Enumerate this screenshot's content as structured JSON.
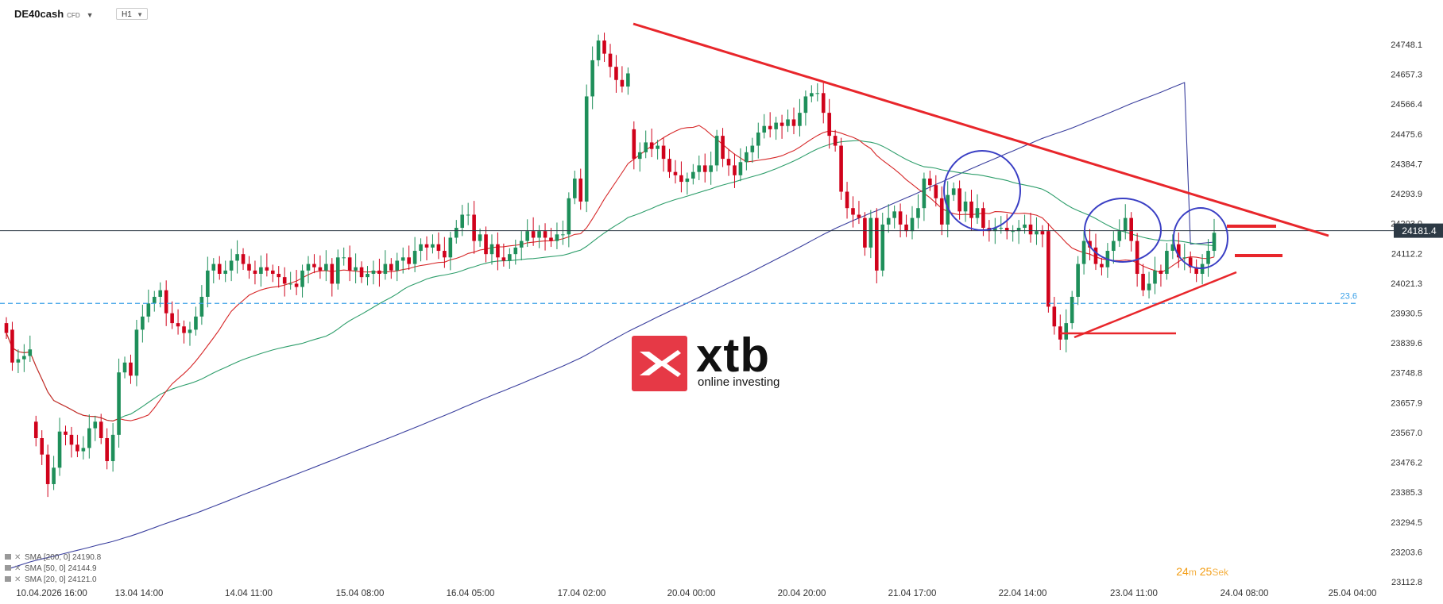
{
  "toolbar": {
    "symbol": "DE40cash",
    "symbol_tag": "CFD",
    "timeframe": "H1"
  },
  "brand": {
    "name": "xtb",
    "tagline": "online investing"
  },
  "countdown": {
    "minutes": "24",
    "minutes_unit": "m",
    "seconds": "25",
    "seconds_unit": "Sek"
  },
  "colors": {
    "bull": "#1e8f5a",
    "bear": "#d0021b",
    "sma20": "#d62728",
    "sma50": "#2e9e6b",
    "sma200": "#3a3f9e",
    "trendline": "#e8262b",
    "circle": "#3a3fc4",
    "fib": "#3aa0e8"
  },
  "chart_data": {
    "type": "candlestick",
    "instrument": "DE40cash",
    "timeframe": "H1",
    "ylim": [
      23090,
      24790
    ],
    "y_ticks": [
      "24748.1",
      "24657.3",
      "24566.4",
      "24475.6",
      "24384.7",
      "24293.9",
      "24203.0",
      "24112.2",
      "24021.3",
      "23930.5",
      "23839.6",
      "23748.8",
      "23657.9",
      "23567.0",
      "23476.2",
      "23385.3",
      "23294.5",
      "23203.6",
      "23112.8"
    ],
    "x_ticks": [
      "10.04.2026 16:00",
      "13.04 14:00",
      "14.04 11:00",
      "15.04 08:00",
      "16.04 05:00",
      "17.04 02:00",
      "20.04 00:00",
      "20.04 20:00",
      "21.04 17:00",
      "22.04 14:00",
      "23.04 11:00",
      "24.04 08:00",
      "25.04 04:00"
    ],
    "current_price": "24181.4",
    "fib_level": {
      "label": "23.6",
      "price": 23960
    },
    "legend": [
      {
        "name": "SMA [200, 0]",
        "value": "24190.8",
        "color": "#3a3f9e"
      },
      {
        "name": "SMA [50, 0]",
        "value": "24144.9",
        "color": "#2e9e6b"
      },
      {
        "name": "SMA [20, 0]",
        "value": "24121.0",
        "color": "#d62728"
      }
    ],
    "close": [
      23870,
      23780,
      23790,
      23800,
      23820,
      23550,
      23500,
      23410,
      23460,
      23570,
      23560,
      23530,
      23510,
      23520,
      23580,
      23600,
      23550,
      23480,
      23560,
      23750,
      23780,
      23740,
      23880,
      23920,
      23960,
      23980,
      24000,
      23930,
      23900,
      23890,
      23870,
      23880,
      23920,
      23980,
      24060,
      24080,
      24050,
      24060,
      24090,
      24110,
      24080,
      24060,
      24050,
      24070,
      24060,
      24050,
      24040,
      24020,
      24020,
      24010,
      24060,
      24080,
      24070,
      24060,
      24080,
      24020,
      24100,
      24100,
      24060,
      24070,
      24040,
      24050,
      24060,
      24050,
      24080,
      24060,
      24090,
      24100,
      24080,
      24120,
      24140,
      24130,
      24140,
      24120,
      24100,
      24160,
      24190,
      24230,
      24230,
      24150,
      24170,
      24110,
      24140,
      24100,
      24090,
      24110,
      24130,
      24150,
      24180,
      24160,
      24180,
      24160,
      24150,
      24170,
      24170,
      24280,
      24340,
      24270,
      24590,
      24700,
      24760,
      24720,
      24680,
      24640,
      24620,
      24660,
      24400,
      24420,
      24450,
      24430,
      24440,
      24400,
      24360,
      24350,
      24330,
      24340,
      24360,
      24380,
      24360,
      24380,
      24470,
      24400,
      24380,
      24350,
      24390,
      24420,
      24440,
      24480,
      24500,
      24490,
      24510,
      24500,
      24520,
      24500,
      24540,
      24590,
      24600,
      24600,
      24540,
      24470,
      24440,
      24300,
      24250,
      24230,
      24220,
      24130,
      24220,
      24060,
      24200,
      24220,
      24240,
      24200,
      24180,
      24220,
      24250,
      24340,
      24320,
      24280,
      24200,
      24290,
      24310,
      24240,
      24270,
      24220,
      24250,
      24190,
      24180,
      24190,
      24190,
      24180,
      24180,
      24190,
      24200,
      24170,
      24180,
      24170,
      23950,
      23890,
      23850,
      23900,
      23980,
      24080,
      24150,
      24130,
      24080,
      24070,
      24120,
      24150,
      24180,
      24220,
      24150,
      24050,
      24000,
      24020,
      24060,
      24050,
      24120,
      24140,
      24100,
      24100,
      24070,
      24050,
      24080,
      24120,
      24175
    ],
    "open": [
      23900,
      23880,
      23780,
      23790,
      23800,
      23600,
      23550,
      23500,
      23410,
      23460,
      23570,
      23560,
      23530,
      23510,
      23520,
      23580,
      23600,
      23550,
      23480,
      23560,
      23750,
      23780,
      23740,
      23880,
      23920,
      23960,
      23980,
      24000,
      23930,
      23900,
      23890,
      23870,
      23880,
      23920,
      23980,
      24060,
      24080,
      24050,
      24060,
      24090,
      24110,
      24080,
      24060,
      24050,
      24070,
      24060,
      24050,
      24040,
      24020,
      24020,
      24010,
      24060,
      24080,
      24070,
      24060,
      24080,
      24020,
      24100,
      24100,
      24060,
      24070,
      24040,
      24050,
      24060,
      24050,
      24080,
      24060,
      24090,
      24100,
      24080,
      24120,
      24140,
      24130,
      24140,
      24120,
      24100,
      24160,
      24190,
      24230,
      24230,
      24150,
      24170,
      24110,
      24140,
      24100,
      24090,
      24110,
      24130,
      24150,
      24180,
      24160,
      24180,
      24160,
      24150,
      24170,
      24170,
      24280,
      24340,
      24270,
      24590,
      24700,
      24760,
      24720,
      24680,
      24640,
      24620,
      24490,
      24400,
      24420,
      24450,
      24430,
      24440,
      24400,
      24360,
      24350,
      24330,
      24340,
      24360,
      24380,
      24360,
      24380,
      24470,
      24400,
      24380,
      24350,
      24390,
      24420,
      24440,
      24480,
      24500,
      24490,
      24510,
      24500,
      24520,
      24500,
      24540,
      24590,
      24600,
      24600,
      24540,
      24470,
      24440,
      24300,
      24250,
      24230,
      24220,
      24130,
      24220,
      24060,
      24200,
      24220,
      24240,
      24200,
      24180,
      24220,
      24250,
      24340,
      24320,
      24280,
      24200,
      24290,
      24310,
      24240,
      24270,
      24220,
      24250,
      24190,
      24180,
      24190,
      24190,
      24180,
      24180,
      24190,
      24200,
      24170,
      24180,
      24180,
      23950,
      23890,
      23850,
      23900,
      23980,
      24080,
      24150,
      24130,
      24080,
      24070,
      24120,
      24150,
      24180,
      24220,
      24150,
      24050,
      24000,
      24020,
      24060,
      24050,
      24120,
      24140,
      24100,
      24100,
      24070,
      24050,
      24080,
      24120
    ]
  }
}
